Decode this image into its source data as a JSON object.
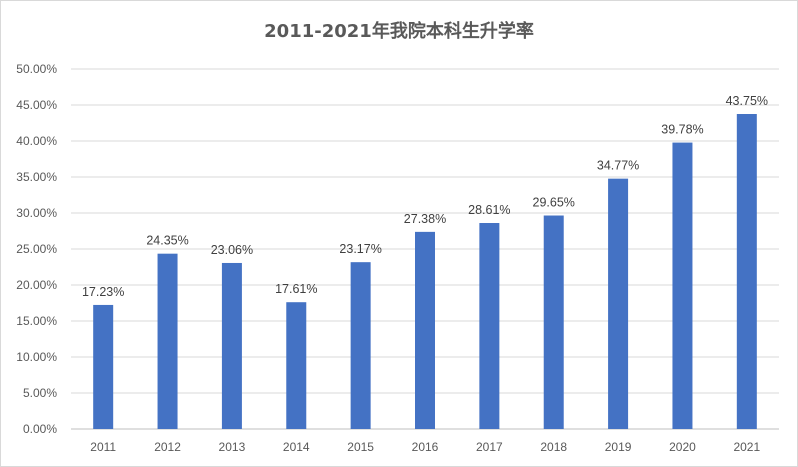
{
  "chart_data": {
    "type": "bar",
    "title": "2011-2021年我院本科生升学率",
    "categories": [
      "2011",
      "2012",
      "2013",
      "2014",
      "2015",
      "2016",
      "2017",
      "2018",
      "2019",
      "2020",
      "2021"
    ],
    "values": [
      17.23,
      24.35,
      23.06,
      17.61,
      23.17,
      27.38,
      28.61,
      29.65,
      34.77,
      39.78,
      43.75
    ],
    "data_labels": [
      "17.23%",
      "24.35%",
      "23.06%",
      "17.61%",
      "23.17%",
      "27.38%",
      "28.61%",
      "29.65%",
      "34.77%",
      "39.78%",
      "43.75%"
    ],
    "ylim": [
      0,
      50
    ],
    "y_ticks": [
      "0.00%",
      "5.00%",
      "10.00%",
      "15.00%",
      "20.00%",
      "25.00%",
      "30.00%",
      "35.00%",
      "40.00%",
      "45.00%",
      "50.00%"
    ],
    "grid": true,
    "legend": "none",
    "bar_color": "#4472c4",
    "xlabel": "",
    "ylabel": ""
  }
}
